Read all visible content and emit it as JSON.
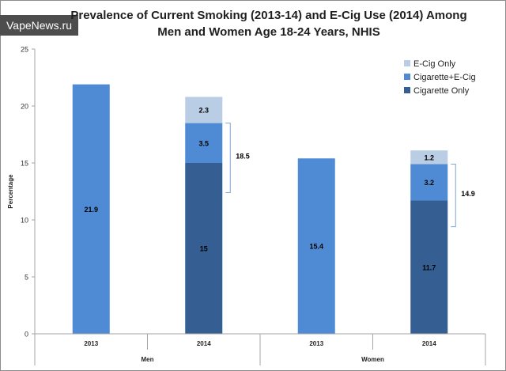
{
  "watermark": "VapeNews.ru",
  "chart_data": {
    "type": "bar",
    "stacked": true,
    "title_line1": "Prevalence of Current Smoking (2013-14)  and E-Cig Use (2014) Among",
    "title_line2": "Men and Women Age 18-24 Years, NHIS",
    "ylabel": "Percentage",
    "xlabel": "",
    "ylim": [
      0,
      25
    ],
    "yticks": [
      0,
      5,
      10,
      15,
      20,
      25
    ],
    "groups": [
      "Men",
      "Women"
    ],
    "categories": [
      "2013",
      "2014",
      "2013",
      "2014"
    ],
    "category_groups": [
      0,
      0,
      1,
      1
    ],
    "series": [
      {
        "name": "Cigarette Only",
        "color": "#355f92",
        "values": [
          null,
          15,
          null,
          11.7
        ],
        "labels": [
          "",
          "15",
          "",
          "11.7"
        ]
      },
      {
        "name": "Cigarette+E-Cig",
        "color": "#4f8bd4",
        "values": [
          21.9,
          3.5,
          15.4,
          3.2
        ],
        "labels": [
          "21.9",
          "3.5",
          "15.4",
          "3.2"
        ]
      },
      {
        "name": "E-Cig Only",
        "color": "#b9cde5",
        "values": [
          null,
          2.3,
          null,
          1.2
        ],
        "labels": [
          "",
          "2.3",
          "",
          "1.2"
        ]
      }
    ],
    "legend_order": [
      "E-Cig Only",
      "Cigarette+E-Cig",
      "Cigarette Only"
    ],
    "legend_position": "top-right",
    "brackets": [
      {
        "category_index": 1,
        "from": 12.4,
        "to": 18.5,
        "label": "18.5"
      },
      {
        "category_index": 3,
        "from": 9.4,
        "to": 14.9,
        "label": "14.9"
      }
    ]
  }
}
